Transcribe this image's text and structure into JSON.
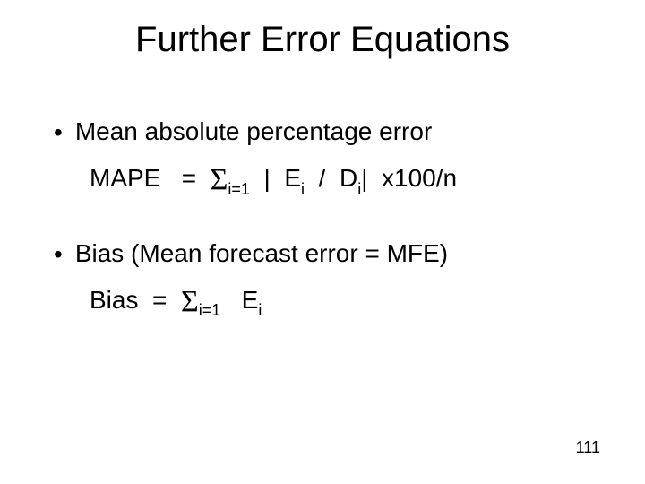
{
  "slide": {
    "title": "Further Error Equations",
    "page_number": "111",
    "background_color": "#ffffff",
    "text_color": "#000000",
    "title_fontsize": 40,
    "body_fontsize": 28,
    "sub_fontsize": 18,
    "pagenum_fontsize": 18,
    "font_family": "Arial",
    "bullets": [
      {
        "text": "Mean absolute percentage error",
        "formula": {
          "lhs": "MAPE",
          "equals": "=",
          "sigma": "Σ",
          "sigma_sub": "i=1",
          "bar1": "|",
          "E": "E",
          "E_sub": "i",
          "slash": "/",
          "D": "D",
          "D_sub": "i",
          "bar2": "|",
          "tail": "x100/n"
        }
      },
      {
        "text": "Bias (Mean forecast error = MFE)",
        "formula": {
          "lhs": "Bias",
          "equals": "=",
          "sigma": "Σ",
          "sigma_sub": "i=1",
          "E": "E",
          "E_sub": "i"
        }
      }
    ]
  }
}
